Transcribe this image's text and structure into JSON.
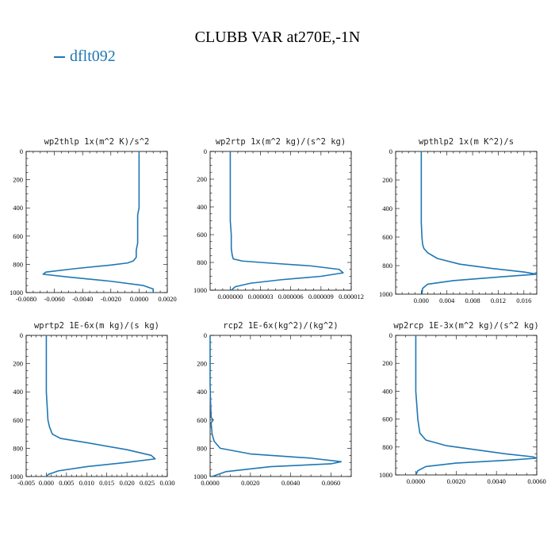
{
  "figure": {
    "title": "CLUBB VAR at270E,-1N",
    "legend": [
      {
        "label": "dflt092",
        "color": "#1f77b4"
      }
    ]
  },
  "chart_data": [
    {
      "type": "line",
      "title": "wp2thlp  1x(m^2 K)/s^2",
      "xlim": [
        -0.008,
        0.002
      ],
      "xticks": [
        -0.008,
        -0.006,
        -0.004,
        -0.002,
        0.0,
        0.002
      ],
      "xticklabels": [
        "-0.0080",
        "-0.0060",
        "-0.0040",
        "-0.0020",
        "0.0000",
        "0.0020"
      ],
      "ylim": [
        1000,
        0
      ],
      "yticks": [
        0,
        200,
        400,
        600,
        800,
        1000
      ],
      "series": [
        {
          "label": "dflt092",
          "color": "#1f77b4",
          "x": [
            0.0,
            0.0,
            0.0,
            0.0,
            0.0,
            -0.0001,
            -0.0001,
            -0.0001,
            -0.0002,
            -0.0002,
            -0.0004,
            -0.0008,
            -0.002,
            -0.0045,
            -0.0066,
            -0.0068,
            -0.005,
            -0.002,
            0.0003,
            0.001,
            0.001
          ],
          "y": [
            0,
            100,
            200,
            300,
            400,
            450,
            550,
            650,
            700,
            750,
            775,
            790,
            805,
            830,
            855,
            870,
            890,
            920,
            950,
            975,
            1000
          ]
        }
      ]
    },
    {
      "type": "line",
      "title": "wp2rtp  1x(m^2 kg)/(s^2 kg)",
      "xlim": [
        -2e-06,
        1.2e-05
      ],
      "xticks": [
        0.0,
        3e-06,
        6e-06,
        9e-06,
        1.2e-05
      ],
      "xticklabels": [
        "0.000000",
        "0.000003",
        "0.000006",
        "0.000009",
        "0.000012"
      ],
      "ylim": [
        1000,
        0
      ],
      "yticks": [
        0,
        200,
        400,
        600,
        800,
        1000
      ],
      "series": [
        {
          "label": "dflt092",
          "color": "#1f77b4",
          "x": [
            0.0,
            0.0,
            0.0,
            0.0,
            0.0,
            0.0,
            1e-07,
            1e-07,
            2e-07,
            3e-07,
            1.2e-06,
            4e-06,
            8e-06,
            1.08e-05,
            1.12e-05,
            9e-06,
            5e-06,
            2e-06,
            5e-07,
            1e-07
          ],
          "y": [
            0,
            100,
            200,
            300,
            400,
            500,
            600,
            700,
            750,
            775,
            790,
            805,
            825,
            850,
            875,
            900,
            925,
            950,
            975,
            1000
          ]
        }
      ]
    },
    {
      "type": "line",
      "title": "wpthlp2  1x(m K^2)/s",
      "xlim": [
        -0.004,
        0.018
      ],
      "xticks": [
        0.0,
        0.004,
        0.008,
        0.012,
        0.016
      ],
      "xticklabels": [
        "0.000",
        "0.004",
        "0.008",
        "0.012",
        "0.016"
      ],
      "ylim": [
        1000,
        0
      ],
      "yticks": [
        0,
        200,
        400,
        600,
        800,
        1000
      ],
      "series": [
        {
          "label": "dflt092",
          "color": "#1f77b4",
          "x": [
            0.0,
            0.0,
            0.0,
            0.0,
            0.0,
            0.0,
            0.0001,
            0.0002,
            0.0004,
            0.001,
            0.0025,
            0.006,
            0.011,
            0.016,
            0.018,
            0.012,
            0.005,
            0.001,
            0.0002,
            0.0001
          ],
          "y": [
            0,
            100,
            200,
            300,
            400,
            500,
            600,
            650,
            680,
            710,
            750,
            790,
            820,
            845,
            860,
            880,
            905,
            930,
            960,
            1000
          ]
        }
      ]
    },
    {
      "type": "line",
      "title": "wprtp2  1E-6x(m kg)/(s kg)",
      "xlim": [
        -0.005,
        0.03
      ],
      "xticks": [
        -0.005,
        0.0,
        0.005,
        0.01,
        0.015,
        0.02,
        0.025,
        0.03
      ],
      "xticklabels": [
        "-0.005",
        "0.000",
        "0.005",
        "0.010",
        "0.015",
        "0.020",
        "0.025",
        "0.030"
      ],
      "ylim": [
        1000,
        0
      ],
      "yticks": [
        0,
        200,
        400,
        600,
        800,
        1000
      ],
      "series": [
        {
          "label": "dflt092",
          "color": "#1f77b4",
          "x": [
            0.0,
            0.0,
            0.0,
            0.0,
            0.0,
            0.0002,
            0.0004,
            0.0008,
            0.0015,
            0.0035,
            0.01,
            0.02,
            0.026,
            0.027,
            0.02,
            0.01,
            0.003,
            0.0005,
            0.0
          ],
          "y": [
            0,
            100,
            200,
            300,
            400,
            500,
            600,
            650,
            700,
            730,
            760,
            810,
            850,
            875,
            900,
            930,
            960,
            985,
            1000
          ]
        }
      ]
    },
    {
      "type": "line",
      "title": "rcp2  1E-6x(kg^2)/(kg^2)",
      "xlim": [
        0.0,
        0.007
      ],
      "xticks": [
        0.0,
        0.002,
        0.004,
        0.006
      ],
      "xticklabels": [
        "0.0000",
        "0.0020",
        "0.0040",
        "0.0060"
      ],
      "ylim": [
        1000,
        0
      ],
      "yticks": [
        0,
        200,
        400,
        600,
        800,
        1000
      ],
      "series": [
        {
          "label": "dflt092",
          "color": "#1f77b4",
          "x": [
            0.0,
            0.0,
            3e-05,
            5e-05,
            0.00015,
            5e-05,
            0.0001,
            0.0002,
            0.0005,
            0.002,
            0.005,
            0.0065,
            0.006,
            0.003,
            0.0008,
            0.0001
          ],
          "y": [
            0,
            350,
            500,
            580,
            600,
            620,
            700,
            750,
            800,
            840,
            870,
            895,
            910,
            930,
            965,
            1000
          ]
        }
      ]
    },
    {
      "type": "line",
      "title": "wp2rcp  1E-3x(m^2 kg)/(s^2 kg)",
      "xlim": [
        -0.001,
        0.006
      ],
      "xticks": [
        0.0,
        0.002,
        0.004,
        0.006
      ],
      "xticklabels": [
        "0.0000",
        "0.0020",
        "0.0040",
        "0.0060"
      ],
      "ylim": [
        1000,
        0
      ],
      "yticks": [
        0,
        200,
        400,
        600,
        800,
        1000
      ],
      "series": [
        {
          "label": "dflt092",
          "color": "#1f77b4",
          "x": [
            0.0,
            0.0,
            0.0,
            0.0,
            0.0,
            5e-05,
            0.0001,
            0.0002,
            0.0005,
            0.0015,
            0.003,
            0.0045,
            0.0058,
            0.006,
            0.0045,
            0.002,
            0.0005,
            0.0001,
            0.0
          ],
          "y": [
            0,
            100,
            200,
            300,
            400,
            500,
            600,
            700,
            750,
            790,
            820,
            850,
            870,
            880,
            895,
            915,
            940,
            970,
            1000
          ]
        }
      ]
    }
  ]
}
